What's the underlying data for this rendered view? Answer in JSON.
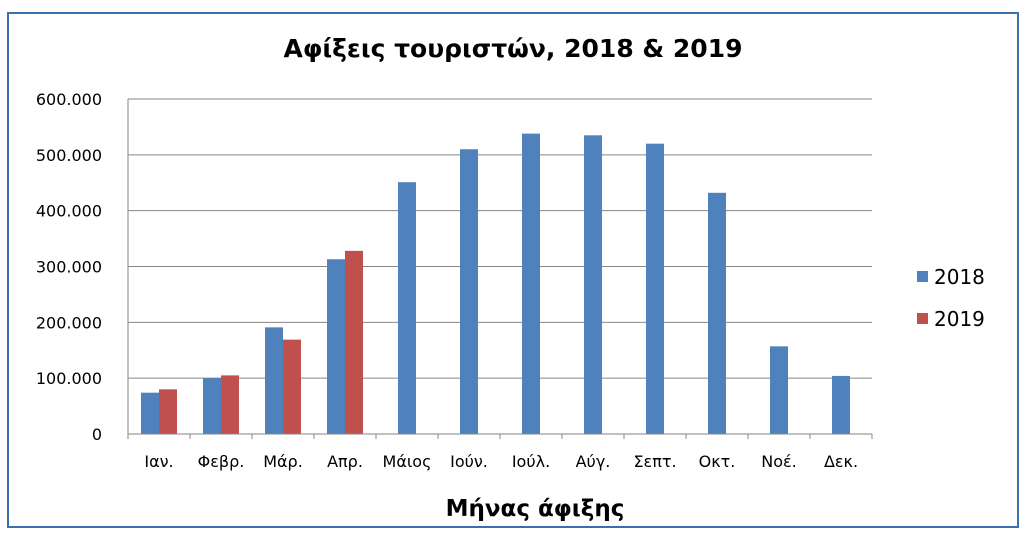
{
  "chart_data": {
    "type": "bar",
    "title": "Αφίξεις τουριστών, 2018 & 2019",
    "xlabel": "Μήνας άφιξης",
    "ylabel": "",
    "categories": [
      "Ιαν.",
      "Φεβρ.",
      "Μάρ.",
      "Απρ.",
      "Μάιος",
      "Ιούν.",
      "Ιούλ.",
      "Αύγ.",
      "Σεπτ.",
      "Οκτ.",
      "Νοέ.",
      "Δεκ."
    ],
    "series": [
      {
        "name": "2018",
        "color": "#4f81bd",
        "values": [
          74000,
          100000,
          191000,
          313000,
          451000,
          510000,
          538000,
          535000,
          520000,
          432000,
          157000,
          104000
        ]
      },
      {
        "name": "2019",
        "color": "#c0504d",
        "values": [
          80000,
          105000,
          169000,
          328000,
          null,
          null,
          null,
          null,
          null,
          null,
          null,
          null
        ]
      }
    ],
    "ylim": [
      0,
      600000
    ],
    "yticks": [
      0,
      100000,
      200000,
      300000,
      400000,
      500000,
      600000
    ],
    "ytick_labels": [
      "0",
      "100.000",
      "200.000",
      "300.000",
      "400.000",
      "500.000",
      "600.000"
    ],
    "grid": true,
    "legend_position": "right"
  }
}
